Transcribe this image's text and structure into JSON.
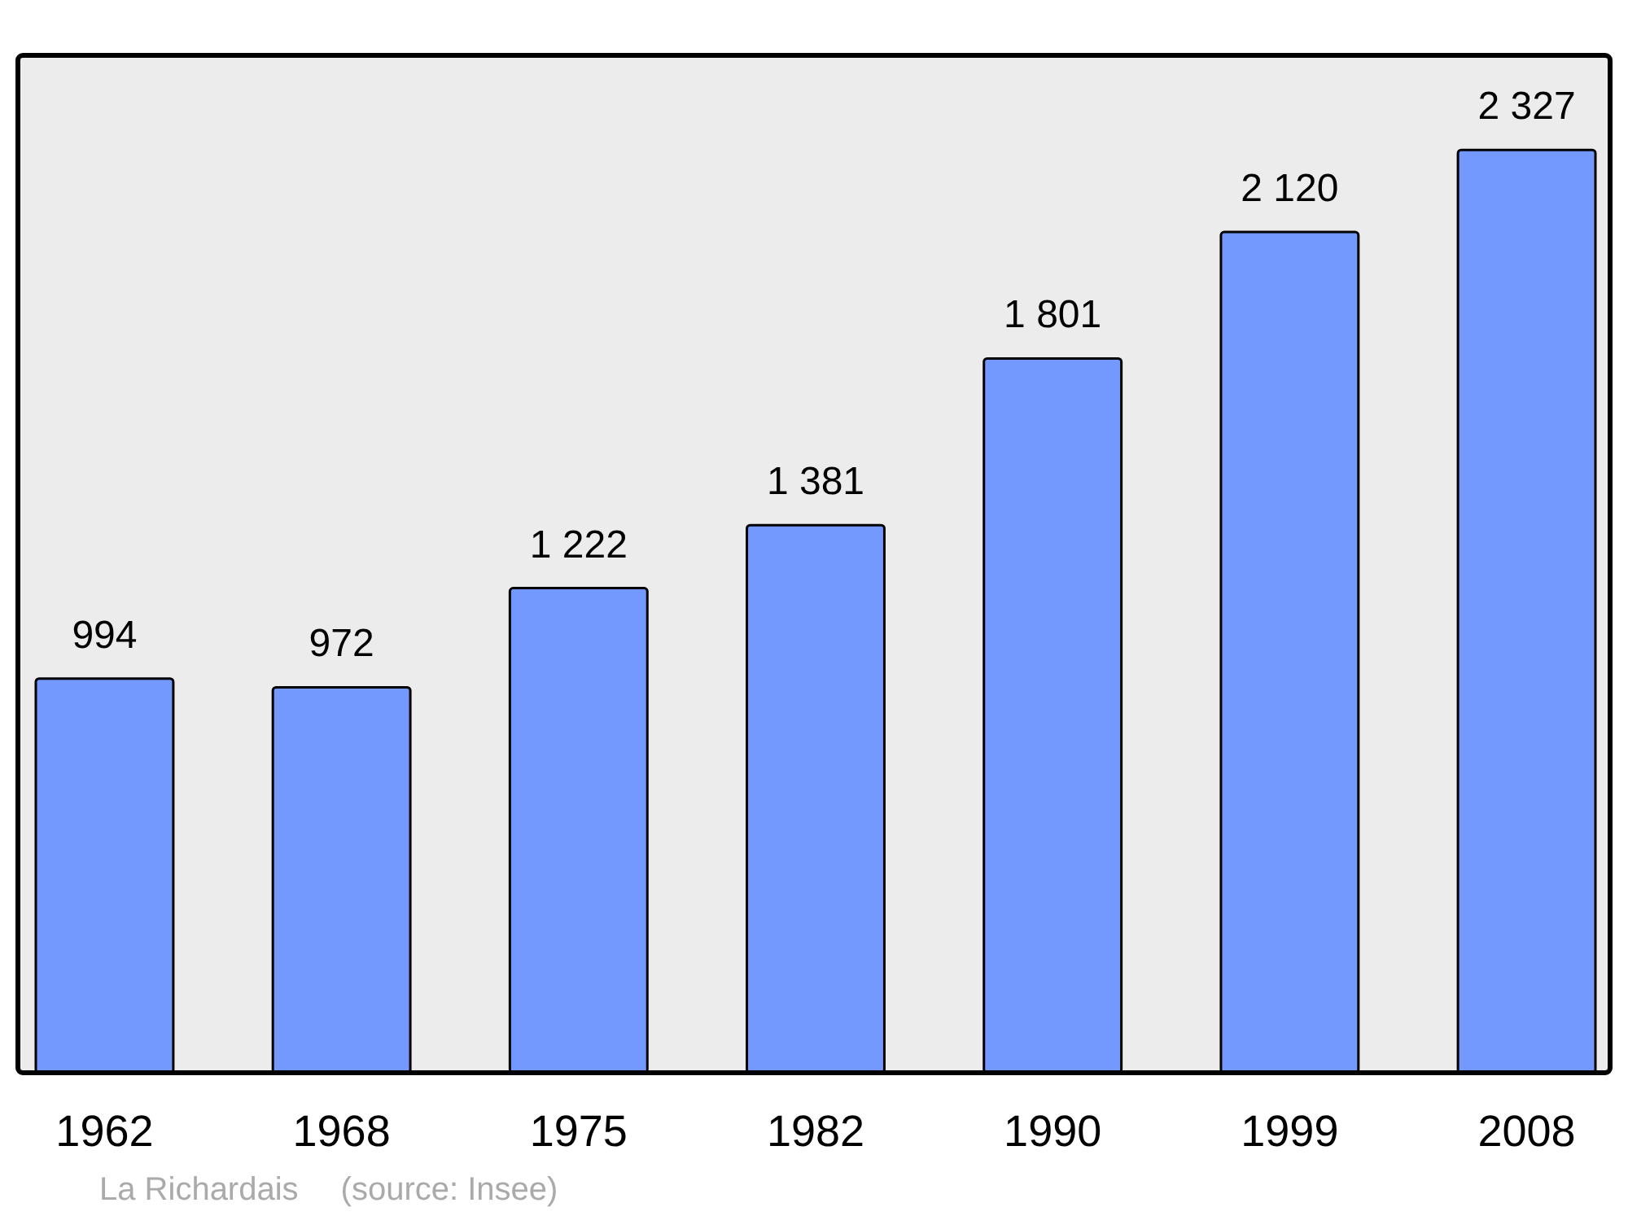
{
  "chart_data": {
    "type": "bar",
    "categories": [
      "1962",
      "1968",
      "1975",
      "1982",
      "1990",
      "1999",
      "2008"
    ],
    "values": [
      994,
      972,
      1222,
      1381,
      1801,
      2120,
      2327
    ],
    "value_labels": [
      "994",
      "972",
      "1 222",
      "1 381",
      "1 801",
      "2 120",
      "2 327"
    ],
    "color": "#7399ff",
    "annotations": [
      "La Richardais",
      "(source: Insee)"
    ]
  }
}
